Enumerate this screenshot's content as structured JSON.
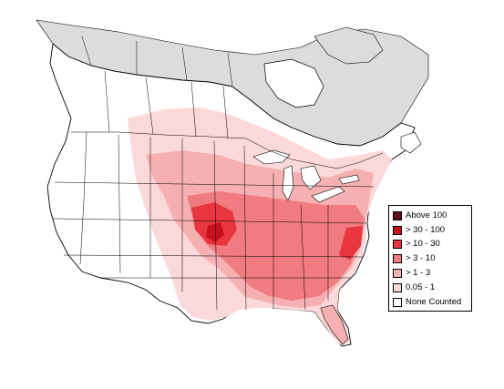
{
  "map": {
    "colors": {
      "ocean": "#ffffff",
      "land": "#ffffff",
      "none_region": "#dcdcdc",
      "border": "#000000"
    }
  },
  "legend": {
    "items": [
      {
        "label": "Above 100",
        "color": "#5a1016"
      },
      {
        "label": "> 30 - 100",
        "color": "#c8101e"
      },
      {
        "label": "> 10 - 30",
        "color": "#e8363e"
      },
      {
        "label": "> 3 - 10",
        "color": "#f07b80"
      },
      {
        "label": "> 1 - 3",
        "color": "#f6b0b2"
      },
      {
        "label": "0.05 - 1",
        "color": "#fbd8d9"
      },
      {
        "label": "None Counted",
        "color": "#ffffff"
      }
    ]
  }
}
